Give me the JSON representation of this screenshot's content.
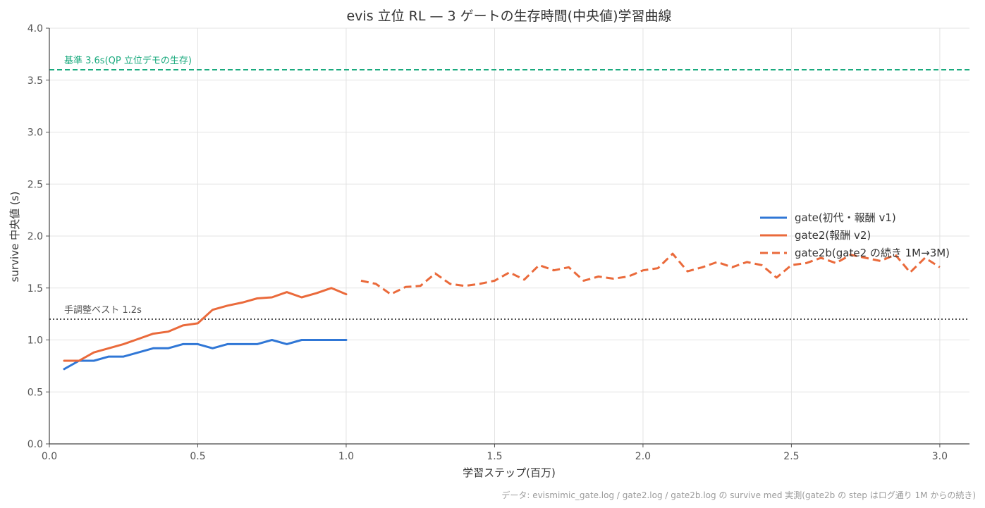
{
  "chart_data": {
    "type": "line",
    "title": "evis 立位 RL — 3 ゲートの生存時間(中央値)学習曲線",
    "xlabel": "学習ステップ(百万)",
    "ylabel": "survive 中央値 (s)",
    "xlim": [
      0,
      3.1
    ],
    "ylim": [
      0,
      4.0
    ],
    "xticks": [
      "0.0",
      "0.5",
      "1.0",
      "1.5",
      "2.0",
      "2.5",
      "3.0"
    ],
    "yticks": [
      "0.0",
      "0.5",
      "1.0",
      "1.5",
      "2.0",
      "2.5",
      "3.0",
      "3.5",
      "4.0"
    ],
    "grid": true,
    "legend_position": "center-right",
    "series": [
      {
        "name": "gate(初代・報酬 v1)",
        "color": "#3077d6",
        "style": "solid",
        "x": [
          0.05,
          0.1,
          0.15,
          0.2,
          0.25,
          0.3,
          0.35,
          0.4,
          0.45,
          0.5,
          0.55,
          0.6,
          0.65,
          0.7,
          0.75,
          0.8,
          0.85,
          0.9,
          0.95,
          1.0
        ],
        "values": [
          0.72,
          0.8,
          0.8,
          0.84,
          0.84,
          0.88,
          0.92,
          0.92,
          0.96,
          0.96,
          0.92,
          0.96,
          0.96,
          0.96,
          1.0,
          0.96,
          1.0,
          1.0,
          1.0,
          1.0
        ]
      },
      {
        "name": "gate2(報酬 v2)",
        "color": "#ea6a3b",
        "style": "solid",
        "x": [
          0.05,
          0.1,
          0.15,
          0.2,
          0.25,
          0.3,
          0.35,
          0.4,
          0.45,
          0.5,
          0.55,
          0.6,
          0.65,
          0.7,
          0.75,
          0.8,
          0.85,
          0.9,
          0.95,
          1.0
        ],
        "values": [
          0.8,
          0.8,
          0.88,
          0.92,
          0.96,
          1.01,
          1.06,
          1.08,
          1.14,
          1.16,
          1.29,
          1.33,
          1.36,
          1.4,
          1.41,
          1.46,
          1.41,
          1.45,
          1.5,
          1.44
        ]
      },
      {
        "name": "gate2b(gate2 の続き 1M→3M)",
        "color": "#ea6a3b",
        "style": "dashed",
        "x": [
          1.05,
          1.1,
          1.15,
          1.2,
          1.25,
          1.3,
          1.35,
          1.4,
          1.45,
          1.5,
          1.55,
          1.6,
          1.65,
          1.7,
          1.75,
          1.8,
          1.85,
          1.9,
          1.95,
          2.0,
          2.05,
          2.1,
          2.15,
          2.2,
          2.25,
          2.3,
          2.35,
          2.4,
          2.45,
          2.5,
          2.55,
          2.6,
          2.65,
          2.7,
          2.75,
          2.8,
          2.85,
          2.9,
          2.95,
          3.0
        ],
        "values": [
          1.57,
          1.54,
          1.44,
          1.51,
          1.52,
          1.64,
          1.54,
          1.52,
          1.54,
          1.57,
          1.65,
          1.58,
          1.72,
          1.67,
          1.7,
          1.57,
          1.61,
          1.59,
          1.61,
          1.67,
          1.69,
          1.83,
          1.66,
          1.7,
          1.75,
          1.7,
          1.75,
          1.72,
          1.6,
          1.72,
          1.74,
          1.79,
          1.74,
          1.82,
          1.79,
          1.76,
          1.82,
          1.65,
          1.79,
          1.7
        ]
      }
    ],
    "reference_lines": [
      {
        "label": "基準 3.6s(QP 立位デモの生存)",
        "y": 3.6,
        "color": "#1aaa7e",
        "style": "dashed"
      },
      {
        "label": "手調整ベスト 1.2s",
        "y": 1.2,
        "color": "#555555",
        "style": "dotted"
      }
    ],
    "source_note": "データ: evismimic_gate.log / gate2.log / gate2b.log の survive med 実測(gate2b の step はログ通り 1M からの続き)"
  }
}
